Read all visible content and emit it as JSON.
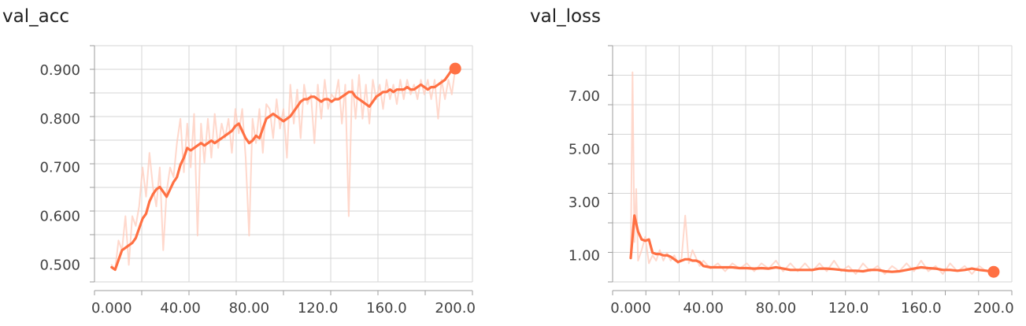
{
  "panels": [
    {
      "id": "acc",
      "title": "val_acc"
    },
    {
      "id": "loss",
      "title": "val_loss"
    }
  ],
  "colors": {
    "smoothed": "#ff7043",
    "raw": "#ffcbbb",
    "grid": "#d6d6d6",
    "axis": "#9e9e9e",
    "text": "#424242"
  },
  "chart_data": [
    {
      "type": "line",
      "title": "val_acc",
      "xlabel": "",
      "ylabel": "",
      "xlim": [
        -10,
        210
      ],
      "ylim": [
        0.465,
        0.95
      ],
      "x_ticks": [
        0,
        40,
        80,
        120,
        160,
        200
      ],
      "x_tick_labels": [
        "0.000",
        "40.00",
        "80.00",
        "120.0",
        "160.0",
        "200.0"
      ],
      "y_ticks": [
        0.5,
        0.6,
        0.7,
        0.8,
        0.9
      ],
      "y_tick_labels": [
        "0.500",
        "0.600",
        "0.700",
        "0.800",
        "0.900"
      ],
      "grid": true,
      "series": [
        {
          "role": "smoothed",
          "x": [
            0,
            2,
            4,
            6,
            8,
            10,
            12,
            14,
            16,
            18,
            20,
            22,
            24,
            26,
            28,
            30,
            32,
            34,
            36,
            38,
            40,
            42,
            44,
            46,
            48,
            50,
            52,
            54,
            56,
            58,
            60,
            62,
            64,
            66,
            68,
            70,
            72,
            74,
            76,
            78,
            80,
            82,
            84,
            86,
            88,
            90,
            92,
            94,
            96,
            98,
            100,
            102,
            104,
            106,
            108,
            110,
            112,
            114,
            116,
            118,
            120,
            122,
            124,
            126,
            128,
            130,
            132,
            134,
            136,
            138,
            140,
            142,
            144,
            146,
            148,
            150,
            152,
            154,
            156,
            158,
            160,
            162,
            164,
            166,
            168,
            170,
            172,
            174,
            176,
            178,
            180,
            182,
            184,
            186,
            188,
            190,
            192,
            194,
            196,
            198,
            200
          ],
          "y": [
            0.495,
            0.49,
            0.51,
            0.53,
            0.535,
            0.54,
            0.545,
            0.555,
            0.575,
            0.595,
            0.605,
            0.63,
            0.645,
            0.655,
            0.66,
            0.65,
            0.64,
            0.655,
            0.67,
            0.68,
            0.705,
            0.72,
            0.74,
            0.735,
            0.74,
            0.745,
            0.75,
            0.745,
            0.75,
            0.755,
            0.75,
            0.755,
            0.76,
            0.765,
            0.77,
            0.775,
            0.785,
            0.79,
            0.775,
            0.76,
            0.75,
            0.755,
            0.765,
            0.76,
            0.78,
            0.8,
            0.805,
            0.81,
            0.805,
            0.8,
            0.795,
            0.8,
            0.805,
            0.815,
            0.825,
            0.835,
            0.84,
            0.84,
            0.845,
            0.845,
            0.84,
            0.835,
            0.84,
            0.84,
            0.835,
            0.84,
            0.84,
            0.845,
            0.85,
            0.855,
            0.855,
            0.845,
            0.84,
            0.835,
            0.83,
            0.825,
            0.835,
            0.845,
            0.85,
            0.855,
            0.855,
            0.86,
            0.855,
            0.86,
            0.86,
            0.86,
            0.865,
            0.86,
            0.86,
            0.865,
            0.87,
            0.865,
            0.86,
            0.865,
            0.865,
            0.87,
            0.875,
            0.88,
            0.89,
            0.9,
            0.903
          ]
        },
        {
          "role": "raw",
          "x": [
            0,
            2,
            4,
            6,
            8,
            10,
            12,
            14,
            16,
            18,
            20,
            22,
            24,
            26,
            28,
            30,
            32,
            34,
            36,
            38,
            40,
            42,
            44,
            46,
            48,
            50,
            52,
            54,
            56,
            58,
            60,
            62,
            64,
            66,
            68,
            70,
            72,
            74,
            76,
            78,
            80,
            82,
            84,
            86,
            88,
            90,
            92,
            94,
            96,
            98,
            100,
            102,
            104,
            106,
            108,
            110,
            112,
            114,
            116,
            118,
            120,
            122,
            124,
            126,
            128,
            130,
            132,
            134,
            136,
            138,
            140,
            142,
            144,
            146,
            148,
            150,
            152,
            154,
            156,
            158,
            160,
            162,
            164,
            166,
            168,
            170,
            172,
            174,
            176,
            178,
            180,
            182,
            184,
            186,
            188,
            190,
            192,
            194,
            196,
            198,
            200
          ],
          "y": [
            0.5,
            0.49,
            0.55,
            0.53,
            0.6,
            0.5,
            0.6,
            0.58,
            0.62,
            0.7,
            0.64,
            0.73,
            0.66,
            0.62,
            0.7,
            0.53,
            0.65,
            0.7,
            0.68,
            0.75,
            0.8,
            0.69,
            0.79,
            0.7,
            0.81,
            0.56,
            0.79,
            0.71,
            0.8,
            0.72,
            0.81,
            0.74,
            0.79,
            0.76,
            0.8,
            0.73,
            0.82,
            0.77,
            0.82,
            0.72,
            0.56,
            0.8,
            0.75,
            0.82,
            0.73,
            0.83,
            0.82,
            0.76,
            0.84,
            0.78,
            0.82,
            0.72,
            0.87,
            0.79,
            0.86,
            0.76,
            0.87,
            0.83,
            0.85,
            0.75,
            0.87,
            0.8,
            0.88,
            0.82,
            0.85,
            0.84,
            0.88,
            0.79,
            0.87,
            0.6,
            0.88,
            0.8,
            0.89,
            0.8,
            0.87,
            0.79,
            0.88,
            0.84,
            0.87,
            0.82,
            0.88,
            0.84,
            0.87,
            0.83,
            0.88,
            0.84,
            0.88,
            0.85,
            0.87,
            0.84,
            0.88,
            0.85,
            0.88,
            0.84,
            0.88,
            0.8,
            0.88,
            0.84,
            0.88,
            0.85,
            0.903
          ]
        }
      ]
    },
    {
      "type": "line",
      "title": "val_loss",
      "xlabel": "",
      "ylabel": "",
      "xlim": [
        -10,
        210
      ],
      "ylim": [
        0.0,
        8.9
      ],
      "x_ticks": [
        0,
        40,
        80,
        120,
        160,
        200
      ],
      "x_tick_labels": [
        "0.000",
        "40.00",
        "80.00",
        "120.0",
        "160.0",
        "200.0"
      ],
      "y_ticks": [
        1.0,
        3.0,
        5.0,
        7.0
      ],
      "y_tick_labels": [
        "1.00",
        "3.00",
        "5.00",
        "7.00"
      ],
      "grid": true,
      "series": [
        {
          "role": "smoothed",
          "x": [
            0,
            2,
            4,
            6,
            8,
            10,
            12,
            14,
            16,
            18,
            20,
            22,
            24,
            26,
            28,
            30,
            32,
            34,
            36,
            38,
            40,
            44,
            48,
            52,
            56,
            60,
            64,
            68,
            72,
            76,
            80,
            84,
            88,
            92,
            96,
            100,
            104,
            108,
            112,
            116,
            120,
            124,
            128,
            132,
            136,
            140,
            144,
            148,
            152,
            156,
            160,
            164,
            168,
            172,
            176,
            180,
            184,
            188,
            192,
            196,
            200
          ],
          "y": [
            0.9,
            2.5,
            1.9,
            1.6,
            1.55,
            1.6,
            1.1,
            1.05,
            1.05,
            1.0,
            1.0,
            0.95,
            0.85,
            0.75,
            0.8,
            0.85,
            0.85,
            0.8,
            0.8,
            0.75,
            0.6,
            0.55,
            0.55,
            0.55,
            0.55,
            0.52,
            0.52,
            0.5,
            0.52,
            0.5,
            0.55,
            0.5,
            0.45,
            0.45,
            0.45,
            0.45,
            0.5,
            0.5,
            0.48,
            0.45,
            0.42,
            0.42,
            0.4,
            0.45,
            0.45,
            0.4,
            0.38,
            0.4,
            0.45,
            0.5,
            0.55,
            0.52,
            0.5,
            0.45,
            0.45,
            0.42,
            0.45,
            0.5,
            0.45,
            0.42,
            0.38
          ]
        },
        {
          "role": "raw",
          "x": [
            0,
            1,
            2,
            3,
            4,
            6,
            8,
            10,
            12,
            14,
            16,
            18,
            20,
            22,
            24,
            26,
            28,
            30,
            32,
            34,
            36,
            38,
            40,
            44,
            48,
            52,
            56,
            60,
            64,
            68,
            72,
            76,
            80,
            84,
            88,
            92,
            96,
            100,
            104,
            108,
            112,
            116,
            120,
            124,
            128,
            132,
            136,
            140,
            144,
            148,
            152,
            156,
            160,
            164,
            168,
            172,
            176,
            180,
            184,
            188,
            192,
            196,
            200
          ],
          "y": [
            0.9,
            7.9,
            1.5,
            3.5,
            0.8,
            1.2,
            1.7,
            0.7,
            1.0,
            0.8,
            1.2,
            0.8,
            1.1,
            0.8,
            1.0,
            0.7,
            0.9,
            2.5,
            0.7,
            1.2,
            0.9,
            0.6,
            0.8,
            0.5,
            0.7,
            0.4,
            0.7,
            0.5,
            0.7,
            0.4,
            0.7,
            0.5,
            0.8,
            0.4,
            0.7,
            0.4,
            0.7,
            0.4,
            0.7,
            0.4,
            0.8,
            0.4,
            0.6,
            0.3,
            0.7,
            0.4,
            0.6,
            0.3,
            0.6,
            0.4,
            0.7,
            0.4,
            0.8,
            0.4,
            0.6,
            0.3,
            0.7,
            0.4,
            0.6,
            0.3,
            0.6,
            0.4,
            0.38
          ]
        }
      ]
    }
  ]
}
